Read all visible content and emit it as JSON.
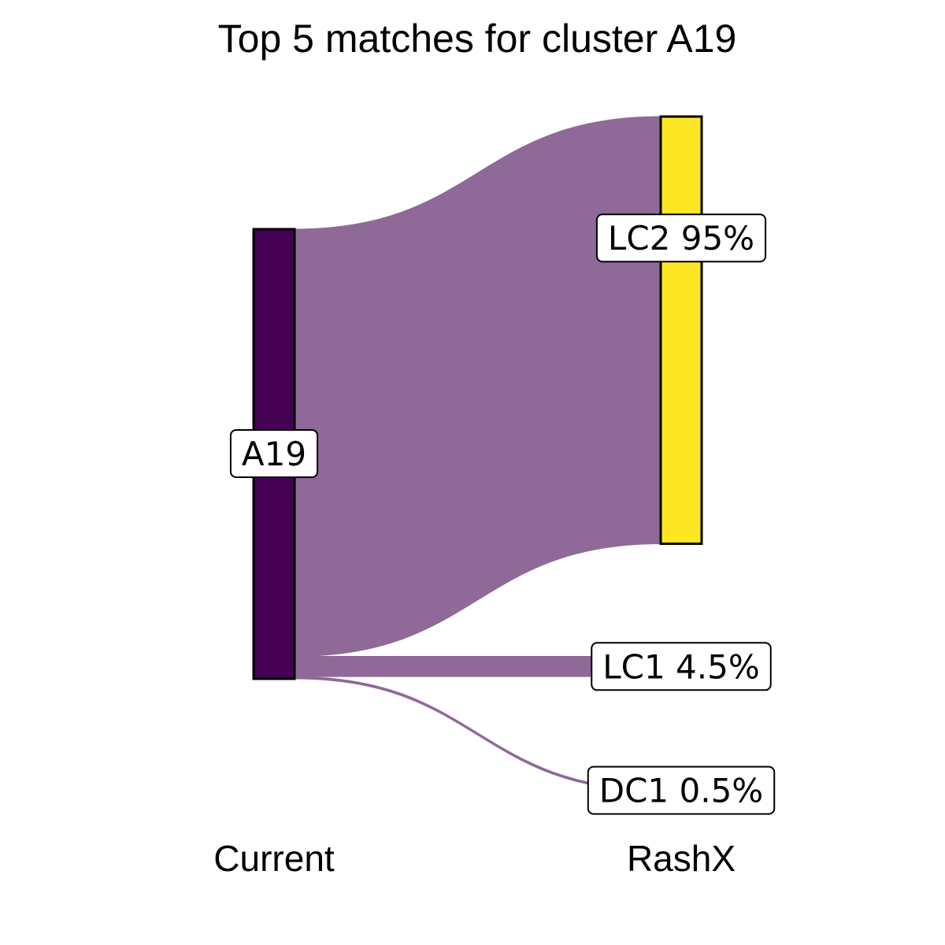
{
  "chart_data": {
    "type": "sankey",
    "title": "Top 5 matches for cluster A19",
    "axes": [
      "Current",
      "RashX"
    ],
    "source": {
      "name": "A19",
      "label": "A19",
      "color": "#440154"
    },
    "targets": [
      {
        "name": "LC2",
        "label": "LC2 95%",
        "percent": 95,
        "color": "#FDE725",
        "show_bar": true
      },
      {
        "name": "LC1",
        "label": "LC1 4.5%",
        "percent": 4.5,
        "color": "#21908C",
        "show_bar": false
      },
      {
        "name": "DC1",
        "label": "DC1 0.5%",
        "percent": 0.5,
        "color": "#3B528B",
        "show_bar": false
      }
    ],
    "flow_color": "#8F6998",
    "legend": "none"
  }
}
